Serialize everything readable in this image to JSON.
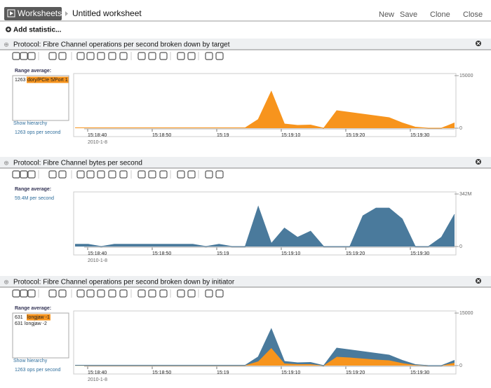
{
  "toolbar": {
    "tab": "Worksheets",
    "title": "Untitled worksheet",
    "actions": [
      "New",
      "Save",
      "Clone",
      "Close"
    ]
  },
  "add_statistic": "Add statistic...",
  "panels": [
    {
      "title": "Protocol: Fibre Channel operations per second broken down by target",
      "range_label": "Range average:",
      "legend": [
        {
          "value": "1263",
          "name": "dory/PCIe 5/Port 1"
        }
      ],
      "show_hierarchy": "Show hierarchy",
      "summary": "1263 ops per second",
      "ylim": [
        0,
        15000
      ],
      "yticks": [
        0,
        15000
      ],
      "xticks": [
        "15:18:40",
        "15:18:50",
        "15:19",
        "15:19:10",
        "15:19:20",
        "15:19:30"
      ],
      "x_date": "2010-1-8",
      "series": [
        {
          "color": "#f7941d",
          "values": [
            100,
            100,
            100,
            100,
            100,
            100,
            100,
            100,
            100,
            100,
            100,
            100,
            100,
            100,
            2500,
            10500,
            1200,
            800,
            900,
            0,
            5000,
            4500,
            4000,
            3500,
            3000,
            1500,
            300,
            0,
            0,
            1500
          ]
        }
      ]
    },
    {
      "title": "Protocol: Fibre Channel bytes per second",
      "range_label": "Range average:",
      "summary": "59.4M per second",
      "ylim": [
        0,
        342
      ],
      "yticks": [
        0,
        {
          "value": 342,
          "label": "342M"
        }
      ],
      "xticks": [
        "15:18:40",
        "15:18:50",
        "15:19",
        "15:19:10",
        "15:19:20",
        "15:19:30"
      ],
      "x_date": "2010-1-8",
      "series": [
        {
          "color": "#4a7a9c",
          "values": [
            15,
            15,
            0,
            15,
            15,
            15,
            15,
            15,
            15,
            15,
            0,
            15,
            0,
            0,
            260,
            20,
            120,
            60,
            100,
            0,
            0,
            0,
            200,
            250,
            250,
            180,
            0,
            0,
            60,
            210
          ]
        }
      ]
    },
    {
      "title": "Protocol: Fibre Channel operations per second broken down by initiator",
      "range_label": "Range average:",
      "legend": [
        {
          "value": "631",
          "name": "longjaw -1"
        },
        {
          "value": "631",
          "name": "longjaw -2"
        }
      ],
      "show_hierarchy": "Show hierarchy",
      "summary": "1263 ops per second",
      "ylim": [
        0,
        15000
      ],
      "yticks": [
        0,
        15000
      ],
      "xticks": [
        "15:18:40",
        "15:18:50",
        "15:19",
        "15:19:10",
        "15:19:20",
        "15:19:30"
      ],
      "x_date": "2010-1-8",
      "series": [
        {
          "color": "#f7941d",
          "values": [
            50,
            50,
            50,
            50,
            50,
            50,
            50,
            50,
            50,
            50,
            50,
            50,
            50,
            50,
            1200,
            5000,
            600,
            400,
            400,
            0,
            2500,
            2300,
            2000,
            1700,
            1500,
            700,
            150,
            0,
            0,
            800
          ]
        },
        {
          "color": "#4a7a9c",
          "values": [
            50,
            50,
            50,
            50,
            50,
            50,
            50,
            50,
            50,
            50,
            50,
            50,
            50,
            50,
            1300,
            5500,
            600,
            400,
            500,
            0,
            2500,
            2200,
            2000,
            1800,
            1500,
            800,
            150,
            0,
            0,
            700
          ]
        }
      ]
    }
  ]
}
